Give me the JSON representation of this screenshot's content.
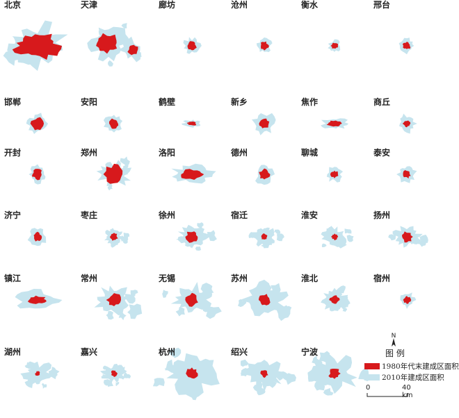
{
  "colors": {
    "urban_1980": "#d7191c",
    "urban_2010": "#c6e4ee",
    "text": "#222222"
  },
  "cities": [
    {
      "name": "北京",
      "size2010": 1.0,
      "size1980": 0.55,
      "shape": "sprawl"
    },
    {
      "name": "天津",
      "size2010": 0.92,
      "size1980": 0.45,
      "shape": "twin"
    },
    {
      "name": "廊坊",
      "size2010": 0.25,
      "size1980": 0.14,
      "shape": "compact"
    },
    {
      "name": "沧州",
      "size2010": 0.22,
      "size1980": 0.13,
      "shape": "compact"
    },
    {
      "name": "衡水",
      "size2010": 0.18,
      "size1980": 0.11,
      "shape": "compact"
    },
    {
      "name": "邢台",
      "size2010": 0.22,
      "size1980": 0.12,
      "shape": "compact"
    },
    {
      "name": "邯郸",
      "size2010": 0.3,
      "size1980": 0.2,
      "shape": "compact"
    },
    {
      "name": "安阳",
      "size2010": 0.3,
      "size1980": 0.16,
      "shape": "compact"
    },
    {
      "name": "鹤壁",
      "size2010": 0.2,
      "size1980": 0.1,
      "shape": "linear"
    },
    {
      "name": "新乡",
      "size2010": 0.35,
      "size1980": 0.16,
      "shape": "compact"
    },
    {
      "name": "焦作",
      "size2010": 0.3,
      "size1980": 0.16,
      "shape": "linear"
    },
    {
      "name": "商丘",
      "size2010": 0.28,
      "size1980": 0.12,
      "shape": "compact"
    },
    {
      "name": "开封",
      "size2010": 0.27,
      "size1980": 0.17,
      "shape": "compact"
    },
    {
      "name": "郑州",
      "size2010": 0.6,
      "size1980": 0.3,
      "shape": "sprawl"
    },
    {
      "name": "洛阳",
      "size2010": 0.48,
      "size1980": 0.25,
      "shape": "linear"
    },
    {
      "name": "德州",
      "size2010": 0.3,
      "size1980": 0.17,
      "shape": "compact"
    },
    {
      "name": "聊城",
      "size2010": 0.25,
      "size1980": 0.12,
      "shape": "compact"
    },
    {
      "name": "泰安",
      "size2010": 0.28,
      "size1980": 0.13,
      "shape": "compact"
    },
    {
      "name": "济宁",
      "size2010": 0.28,
      "size1980": 0.14,
      "shape": "compact"
    },
    {
      "name": "枣庄",
      "size2010": 0.35,
      "size1980": 0.12,
      "shape": "scattered"
    },
    {
      "name": "徐州",
      "size2010": 0.55,
      "size1980": 0.2,
      "shape": "sprawl"
    },
    {
      "name": "宿迁",
      "size2010": 0.45,
      "size1980": 0.1,
      "shape": "scattered"
    },
    {
      "name": "淮安",
      "size2010": 0.45,
      "size1980": 0.1,
      "shape": "scattered"
    },
    {
      "name": "扬州",
      "size2010": 0.5,
      "size1980": 0.18,
      "shape": "sprawl"
    },
    {
      "name": "镇江",
      "size2010": 0.5,
      "size1980": 0.2,
      "shape": "linear"
    },
    {
      "name": "常州",
      "size2010": 0.7,
      "size1980": 0.22,
      "shape": "sprawl"
    },
    {
      "name": "无锡",
      "size2010": 0.75,
      "size1980": 0.2,
      "shape": "sprawl"
    },
    {
      "name": "苏州",
      "size2010": 0.8,
      "size1980": 0.18,
      "shape": "sprawl"
    },
    {
      "name": "淮北",
      "size2010": 0.5,
      "size1980": 0.15,
      "shape": "scattered"
    },
    {
      "name": "宿州",
      "size2010": 0.25,
      "size1980": 0.12,
      "shape": "compact"
    },
    {
      "name": "湖州",
      "size2010": 0.55,
      "size1980": 0.08,
      "shape": "scattered"
    },
    {
      "name": "嘉兴",
      "size2010": 0.45,
      "size1980": 0.1,
      "shape": "scattered"
    },
    {
      "name": "杭州",
      "size2010": 0.95,
      "size1980": 0.18,
      "shape": "sprawl"
    },
    {
      "name": "绍兴",
      "size2010": 0.75,
      "size1980": 0.12,
      "shape": "scattered"
    },
    {
      "name": "宁波",
      "size2010": 0.85,
      "size1980": 0.18,
      "shape": "scattered"
    }
  ],
  "legend": {
    "title": "图 例",
    "north_label": "N",
    "items": [
      {
        "label": "1980年代末建成区面积",
        "color": "#d7191c"
      },
      {
        "label": "2010年建成区面积",
        "color": "#c6e4ee"
      }
    ],
    "scale_start": "0",
    "scale_end": "40 km"
  }
}
